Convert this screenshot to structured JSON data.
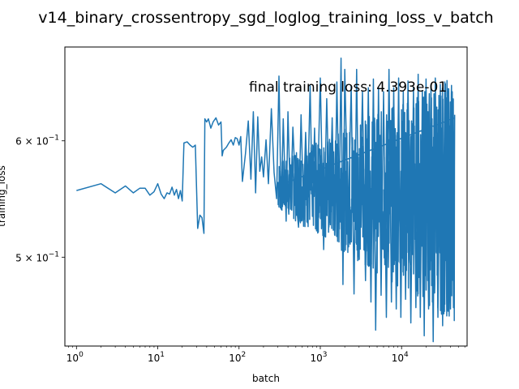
{
  "chart_data": {
    "type": "line",
    "title": "v14_binary_crossentropy_sgd_loglog_training_loss_v_batch",
    "xlabel": "batch",
    "ylabel": "training_loss",
    "xscale": "log",
    "yscale": "log",
    "xlim": [
      0.72,
      64000
    ],
    "ylim": [
      0.435,
      0.695
    ],
    "grid": false,
    "x_ticks": [
      {
        "value": 1,
        "base": "10",
        "exp": "0"
      },
      {
        "value": 10,
        "base": "10",
        "exp": "1"
      },
      {
        "value": 100,
        "base": "10",
        "exp": "2"
      },
      {
        "value": 1000,
        "base": "10",
        "exp": "3"
      },
      {
        "value": 10000,
        "base": "10",
        "exp": "4"
      }
    ],
    "y_ticks": [
      {
        "value": 0.5,
        "mant": "5",
        "base": "10",
        "exp": "−1"
      },
      {
        "value": 0.6,
        "mant": "6",
        "base": "10",
        "exp": "−1"
      }
    ],
    "annotation": "final training loss: 4.393e-01",
    "series": [
      {
        "color": "#1f77b4",
        "x_max": 45000,
        "points": [
          [
            1,
            0.555
          ],
          [
            2,
            0.561
          ],
          [
            3,
            0.553
          ],
          [
            4,
            0.559
          ],
          [
            5,
            0.553
          ],
          [
            6,
            0.557
          ],
          [
            7,
            0.557
          ],
          [
            8,
            0.551
          ],
          [
            9,
            0.554
          ],
          [
            10,
            0.561
          ],
          [
            11,
            0.552
          ],
          [
            12,
            0.548
          ],
          [
            13,
            0.553
          ],
          [
            14,
            0.552
          ],
          [
            15,
            0.558
          ],
          [
            16,
            0.551
          ],
          [
            17,
            0.556
          ],
          [
            18,
            0.548
          ],
          [
            19,
            0.555
          ],
          [
            20,
            0.546
          ],
          [
            21,
            0.598
          ],
          [
            23,
            0.599
          ],
          [
            25,
            0.596
          ],
          [
            27,
            0.594
          ],
          [
            29,
            0.596
          ],
          [
            31,
            0.523
          ],
          [
            33,
            0.534
          ],
          [
            35,
            0.532
          ],
          [
            37,
            0.519
          ],
          [
            38,
            0.621
          ],
          [
            40,
            0.618
          ],
          [
            42,
            0.621
          ],
          [
            45,
            0.612
          ],
          [
            48,
            0.618
          ],
          [
            52,
            0.622
          ],
          [
            56,
            0.615
          ],
          [
            60,
            0.618
          ],
          [
            62,
            0.586
          ],
          [
            64,
            0.591
          ],
          [
            70,
            0.594
          ],
          [
            75,
            0.598
          ],
          [
            80,
            0.601
          ],
          [
            85,
            0.596
          ],
          [
            90,
            0.603
          ],
          [
            95,
            0.602
          ],
          [
            100,
            0.596
          ],
          [
            105,
            0.604
          ],
          [
            110,
            0.563
          ],
          [
            120,
            0.588
          ],
          [
            130,
            0.619
          ],
          [
            140,
            0.565
          ],
          [
            150,
            0.628
          ],
          [
            160,
            0.553
          ],
          [
            170,
            0.623
          ],
          [
            180,
            0.572
          ],
          [
            190,
            0.585
          ],
          [
            200,
            0.567
          ],
          [
            215,
            0.601
          ],
          [
            230,
            0.561
          ],
          [
            250,
            0.631
          ],
          [
            270,
            0.571
          ],
          [
            290,
            0.548
          ],
          [
            310,
            0.664
          ],
          [
            330,
            0.539
          ],
          [
            350,
            0.621
          ],
          [
            380,
            0.529
          ],
          [
            400,
            0.628
          ],
          [
            430,
            0.539
          ],
          [
            460,
            0.613
          ],
          [
            500,
            0.549
          ],
          [
            540,
            0.524
          ],
          [
            580,
            0.625
          ],
          [
            620,
            0.541
          ],
          [
            660,
            0.608
          ],
          [
            700,
            0.552
          ],
          [
            750,
            0.654
          ],
          [
            800,
            0.533
          ],
          [
            850,
            0.612
          ],
          [
            900,
            0.521
          ],
          [
            1000,
            0.662
          ],
          [
            1100,
            0.506
          ],
          [
            1200,
            0.641
          ],
          [
            1300,
            0.528
          ],
          [
            1400,
            0.622
          ],
          [
            1500,
            0.518
          ],
          [
            1600,
            0.658
          ],
          [
            1700,
            0.537
          ],
          [
            1800,
            0.683
          ],
          [
            1900,
            0.479
          ],
          [
            2000,
            0.671
          ],
          [
            2200,
            0.528
          ],
          [
            2400,
            0.654
          ],
          [
            2600,
            0.472
          ],
          [
            2800,
            0.671
          ],
          [
            3000,
            0.498
          ],
          [
            3300,
            0.648
          ],
          [
            3600,
            0.482
          ],
          [
            3900,
            0.652
          ],
          [
            4200,
            0.466
          ],
          [
            4500,
            0.661
          ],
          [
            4800,
            0.446
          ],
          [
            5200,
            0.652
          ],
          [
            5600,
            0.471
          ],
          [
            6000,
            0.648
          ],
          [
            6500,
            0.455
          ],
          [
            7000,
            0.671
          ],
          [
            7500,
            0.466
          ],
          [
            8000,
            0.652
          ],
          [
            8600,
            0.461
          ],
          [
            9200,
            0.662
          ],
          [
            9800,
            0.455
          ],
          [
            10500,
            0.648
          ],
          [
            11200,
            0.468
          ],
          [
            12000,
            0.659
          ],
          [
            13000,
            0.451
          ],
          [
            14000,
            0.652
          ],
          [
            15000,
            0.462
          ],
          [
            16000,
            0.666
          ],
          [
            17000,
            0.455
          ],
          [
            18000,
            0.649
          ],
          [
            19000,
            0.442
          ],
          [
            20000,
            0.661
          ],
          [
            21500,
            0.461
          ],
          [
            23000,
            0.655
          ],
          [
            24500,
            0.438
          ],
          [
            26000,
            0.662
          ],
          [
            28000,
            0.455
          ],
          [
            30000,
            0.651
          ],
          [
            32000,
            0.449
          ],
          [
            34000,
            0.658
          ],
          [
            36000,
            0.456
          ],
          [
            38000,
            0.651
          ],
          [
            40000,
            0.461
          ],
          [
            42000,
            0.648
          ],
          [
            43500,
            0.462
          ],
          [
            45000,
            0.622
          ]
        ]
      }
    ]
  }
}
